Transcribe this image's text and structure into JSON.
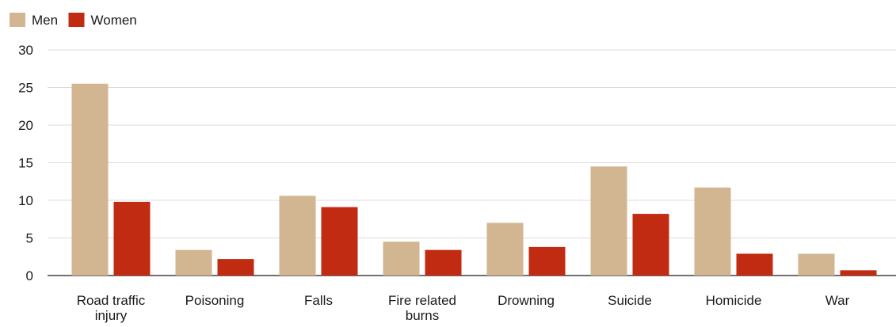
{
  "chart_data": {
    "type": "bar",
    "title": "",
    "xlabel": "",
    "ylabel": "",
    "ylim": [
      0,
      30
    ],
    "yticks": [
      0,
      5,
      10,
      15,
      20,
      25,
      30
    ],
    "grid": true,
    "legend_position": "top-left",
    "categories": [
      [
        "Road traffic",
        "injury"
      ],
      [
        "Poisoning"
      ],
      [
        "Falls"
      ],
      [
        "Fire related",
        "burns"
      ],
      [
        "Drowning"
      ],
      [
        "Suicide"
      ],
      [
        "Homicide"
      ],
      [
        "War"
      ]
    ],
    "series": [
      {
        "name": "Men",
        "color": "#d2b692",
        "values": [
          25.5,
          3.4,
          10.6,
          4.5,
          7.0,
          14.5,
          11.7,
          2.9
        ]
      },
      {
        "name": "Women",
        "color": "#c12b12",
        "values": [
          9.8,
          2.2,
          9.1,
          3.4,
          3.8,
          8.2,
          2.9,
          0.7
        ]
      }
    ]
  }
}
